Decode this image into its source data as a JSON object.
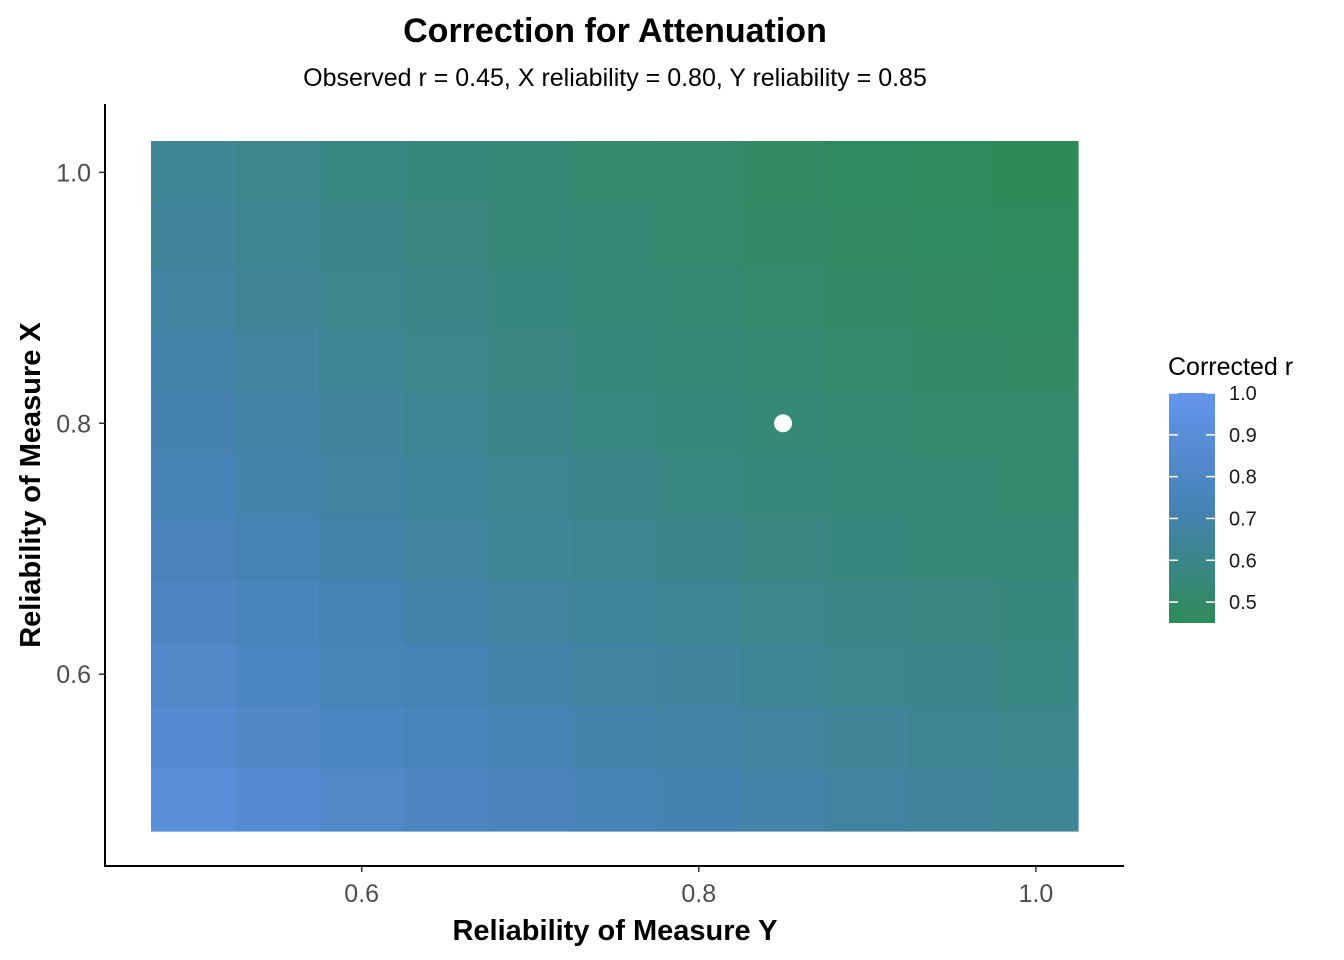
{
  "chart_data": {
    "type": "heatmap",
    "title": "Correction for Attenuation",
    "subtitle": "Observed r = 0.45, X reliability = 0.80, Y reliability = 0.85",
    "xlabel": "Reliability of Measure Y",
    "ylabel": "Reliability of Measure X",
    "x": [
      0.5,
      0.55,
      0.6,
      0.65,
      0.7,
      0.75,
      0.8,
      0.85,
      0.9,
      0.95,
      1.0
    ],
    "y": [
      0.5,
      0.55,
      0.6,
      0.65,
      0.7,
      0.75,
      0.8,
      0.85,
      0.9,
      0.95,
      1.0
    ],
    "xlim": [
      0.475,
      1.025
    ],
    "ylim": [
      0.475,
      1.025
    ],
    "xticks": [
      "0.6",
      "0.8",
      "1.0"
    ],
    "yticks": [
      "0.6",
      "0.8",
      "1.0"
    ],
    "xtick_values": [
      0.6,
      0.8,
      1.0
    ],
    "ytick_values": [
      0.6,
      0.8,
      1.0
    ],
    "fill_label": "Corrected r",
    "fill_scale": {
      "min": 0.45,
      "max": 1.0,
      "low_color": "#2e8b57",
      "mid_color": "#4682b4",
      "high_color": "#6495ed"
    },
    "legend_ticks": [
      "1.0",
      "0.9",
      "0.8",
      "0.7",
      "0.6",
      "0.5"
    ],
    "legend_tick_values": [
      1.0,
      0.9,
      0.8,
      0.7,
      0.6,
      0.5
    ],
    "legend_position": "right",
    "grid": false,
    "highlight_point": {
      "x": 0.85,
      "y": 0.8,
      "color": "#ffffff"
    }
  }
}
